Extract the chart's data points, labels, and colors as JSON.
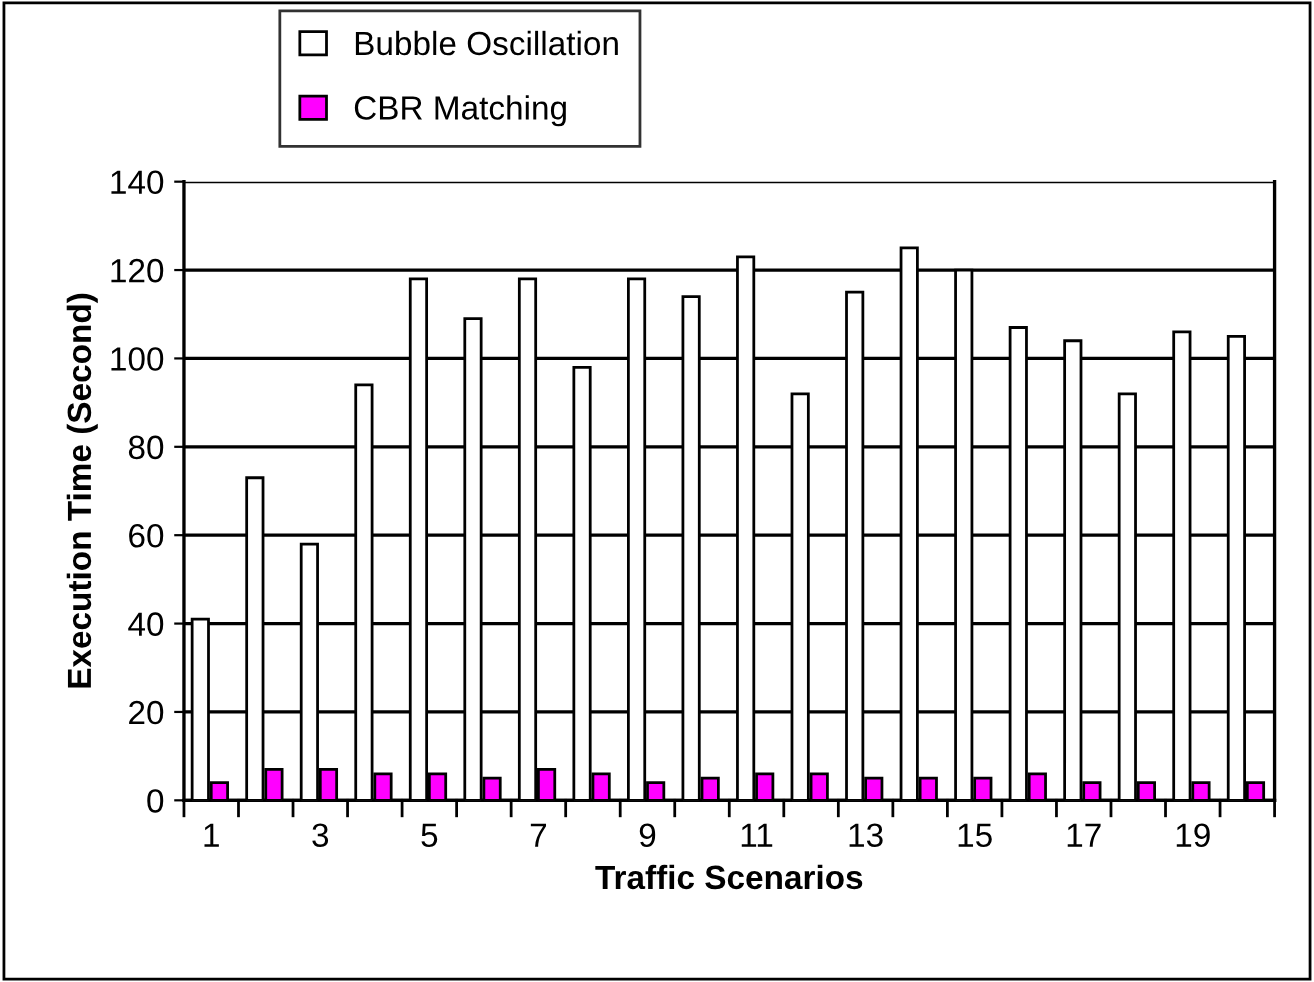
{
  "chart_data": {
    "type": "bar",
    "xlabel": "Traffic Scenarios",
    "ylabel": "Execution Time (Second)",
    "categories": [
      "1",
      null,
      "3",
      null,
      "5",
      null,
      "7",
      null,
      "9",
      null,
      "11",
      null,
      "13",
      null,
      "15",
      null,
      "17",
      null,
      "19",
      null
    ],
    "series": [
      {
        "name": "Bubble Oscillation",
        "color": "#ffffff",
        "values": [
          41,
          73,
          58,
          94,
          118,
          109,
          118,
          98,
          118,
          114,
          123,
          92,
          115,
          125,
          120,
          107,
          104,
          92,
          106,
          105
        ]
      },
      {
        "name": "CBR Matching",
        "color": "#ff00ff",
        "values": [
          4,
          7,
          7,
          6,
          6,
          5,
          7,
          6,
          4,
          5,
          6,
          6,
          5,
          5,
          5,
          6,
          4,
          4,
          4,
          4
        ]
      }
    ],
    "ylim": [
      0,
      140
    ],
    "yticks": [
      0,
      20,
      40,
      60,
      80,
      100,
      120,
      140
    ],
    "grid": "y",
    "legend": "top"
  }
}
